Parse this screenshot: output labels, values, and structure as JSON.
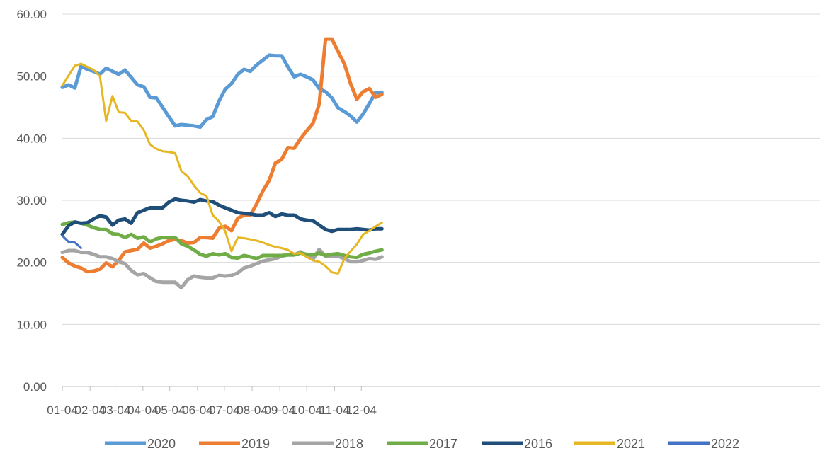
{
  "chart_data": {
    "type": "line",
    "title": "",
    "xlabel": "",
    "ylabel": "",
    "ylim": [
      0,
      60
    ],
    "y_ticks": [
      "0.00",
      "10.00",
      "20.00",
      "30.00",
      "40.00",
      "50.00",
      "60.00"
    ],
    "x_ticks": [
      "01-04",
      "02-04",
      "03-04",
      "04-04",
      "05-04",
      "06-04",
      "07-04",
      "08-04",
      "09-04",
      "10-04",
      "11-04",
      "12-04"
    ],
    "grid": "horizontal",
    "legend_position": "bottom",
    "series": [
      {
        "name": "2020",
        "color": "#5B9BD5",
        "width": 5,
        "values": [
          48.2,
          48.6,
          48.1,
          51.6,
          51.1,
          50.8,
          50.3,
          51.3,
          50.8,
          50.3,
          51.0,
          49.8,
          48.6,
          48.3,
          46.6,
          46.5,
          45.0,
          43.5,
          42.0,
          42.2,
          42.1,
          42.0,
          41.8,
          43.0,
          43.5,
          46.0,
          47.9,
          48.8,
          50.3,
          51.1,
          50.8,
          51.8,
          52.6,
          53.4,
          53.3,
          53.3,
          51.5,
          49.9,
          50.3,
          49.9,
          49.4,
          48.0,
          47.5,
          46.5,
          44.9,
          44.3,
          43.6,
          42.6,
          43.9,
          45.6,
          47.4,
          47.4
        ]
      },
      {
        "name": "2019",
        "color": "#ED7D31",
        "width": 5,
        "values": [
          20.8,
          19.9,
          19.4,
          19.1,
          18.5,
          18.6,
          18.9,
          19.9,
          19.3,
          20.3,
          21.7,
          21.9,
          22.1,
          23.1,
          22.3,
          22.6,
          23.0,
          23.5,
          23.7,
          23.5,
          23.1,
          23.2,
          24.0,
          24.0,
          23.9,
          25.5,
          25.8,
          25.1,
          27.1,
          27.6,
          27.6,
          29.4,
          31.5,
          33.2,
          36.0,
          36.6,
          38.5,
          38.4,
          39.9,
          41.2,
          42.4,
          45.5,
          56.0,
          56.0,
          54.0,
          52.0,
          48.8,
          46.3,
          47.5,
          48.0,
          46.6,
          47.1
        ]
      },
      {
        "name": "2018",
        "color": "#A5A5A5",
        "width": 5,
        "values": [
          21.6,
          21.9,
          21.9,
          21.6,
          21.6,
          21.3,
          20.9,
          20.9,
          20.6,
          20.1,
          19.8,
          18.7,
          18.0,
          18.2,
          17.5,
          16.9,
          16.8,
          16.8,
          16.8,
          15.9,
          17.2,
          17.8,
          17.6,
          17.5,
          17.5,
          17.9,
          17.8,
          17.9,
          18.3,
          19.1,
          19.4,
          19.8,
          20.2,
          20.4,
          20.6,
          21.0,
          21.2,
          21.2,
          21.7,
          21.0,
          20.5,
          22.1,
          21.0,
          21.0,
          21.0,
          20.6,
          20.1,
          20.1,
          20.3,
          20.6,
          20.5,
          20.9
        ]
      },
      {
        "name": "2017",
        "color": "#70AD47",
        "width": 5,
        "values": [
          26.1,
          26.4,
          26.5,
          26.3,
          26.0,
          25.6,
          25.3,
          25.3,
          24.6,
          24.5,
          24.0,
          24.5,
          23.9,
          24.1,
          23.3,
          23.8,
          24.0,
          24.0,
          24.0,
          23.0,
          22.6,
          22.0,
          21.3,
          21.0,
          21.4,
          21.2,
          21.4,
          20.8,
          20.7,
          21.1,
          20.9,
          20.6,
          21.1,
          21.1,
          21.1,
          21.1,
          21.2,
          21.2,
          21.5,
          21.3,
          21.2,
          21.5,
          21.1,
          21.3,
          21.4,
          21.1,
          20.9,
          20.8,
          21.3,
          21.5,
          21.8,
          22.0
        ]
      },
      {
        "name": "2016",
        "color": "#1F4E79",
        "width": 5,
        "values": [
          24.5,
          25.9,
          26.5,
          26.3,
          26.4,
          27.0,
          27.5,
          27.3,
          26.0,
          26.8,
          27.0,
          26.3,
          28.0,
          28.4,
          28.8,
          28.8,
          28.8,
          29.7,
          30.2,
          30.0,
          29.9,
          29.7,
          30.1,
          29.9,
          29.8,
          29.2,
          28.8,
          28.4,
          28.0,
          27.9,
          27.8,
          27.6,
          27.6,
          28.0,
          27.4,
          27.8,
          27.6,
          27.6,
          27.0,
          26.8,
          26.7,
          26.0,
          25.3,
          25.0,
          25.3,
          25.3,
          25.3,
          25.4,
          25.3,
          25.2,
          25.4,
          25.4
        ]
      },
      {
        "name": "2021",
        "color": "#E6B722",
        "width": 3,
        "values": [
          48.5,
          50.1,
          51.7,
          52.0,
          51.5,
          51.0,
          50.0,
          42.8,
          46.8,
          44.2,
          44.1,
          42.8,
          42.7,
          41.3,
          39.0,
          38.3,
          37.9,
          37.8,
          37.6,
          34.7,
          33.9,
          32.4,
          31.2,
          30.7,
          27.6,
          26.6,
          25.0,
          21.8,
          24.0,
          23.9,
          23.7,
          23.5,
          23.2,
          22.8,
          22.5,
          22.3,
          22.0,
          21.4,
          21.5,
          20.9,
          20.3,
          20.1,
          19.4,
          18.4,
          18.2,
          20.6,
          21.8,
          22.9,
          24.5,
          25.1,
          25.8,
          26.4
        ]
      },
      {
        "name": "2022",
        "color": "#4472C4",
        "width": 3,
        "values": [
          24.3,
          23.3,
          23.2,
          22.3
        ]
      }
    ]
  }
}
